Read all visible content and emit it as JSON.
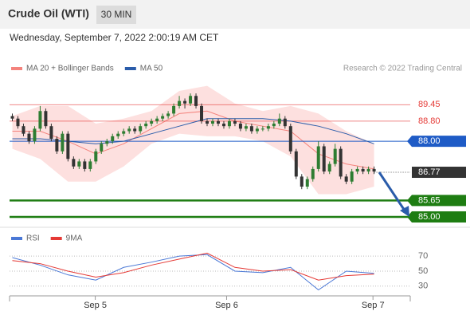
{
  "chart_data": {
    "type": "candlestick",
    "title": "Crude Oil (WTI)",
    "interval": "30 MIN",
    "subtitle": "Wednesday, September 7, 2022 2:00:19 AM CET",
    "credit": "Research © 2022 Trading Central",
    "legend": [
      {
        "name": "MA 20 + Bollinger Bands",
        "color": "#f4837d"
      },
      {
        "name": "MA 50",
        "color": "#2a5caa"
      }
    ],
    "up_color": "#2e7d32",
    "down_color": "#333333",
    "xlim": [
      -0.5,
      71.5
    ],
    "xticks": [
      {
        "value": 14.9,
        "label": "Sep 5"
      },
      {
        "value": 38.5,
        "label": "Sep 6"
      },
      {
        "value": 64.8,
        "label": "Sep 7"
      }
    ],
    "ylim": [
      84.65,
      90.6
    ],
    "x": [
      0,
      1,
      2,
      3,
      4,
      5,
      6,
      7,
      8,
      9,
      10,
      11,
      12,
      13,
      14,
      15,
      16,
      17,
      18,
      19,
      20,
      21,
      22,
      23,
      24,
      25,
      26,
      27,
      28,
      29,
      30,
      31,
      32,
      33,
      34,
      35,
      36,
      37,
      38,
      39,
      40,
      41,
      42,
      43,
      44,
      45,
      46,
      47,
      48,
      49,
      50,
      51,
      52,
      53,
      54,
      55,
      56,
      57,
      58,
      59,
      60,
      61,
      62,
      63,
      64,
      65
    ],
    "candles": [
      [
        89.0,
        89.1,
        88.8,
        88.9
      ],
      [
        88.9,
        89.0,
        88.5,
        88.6
      ],
      [
        88.6,
        88.7,
        88.2,
        88.3
      ],
      [
        88.3,
        88.4,
        87.9,
        88.0
      ],
      [
        88.0,
        88.6,
        87.9,
        88.5
      ],
      [
        88.5,
        89.4,
        88.4,
        89.2
      ],
      [
        89.2,
        89.3,
        88.5,
        88.6
      ],
      [
        88.6,
        88.7,
        88.0,
        88.1
      ],
      [
        88.1,
        88.2,
        87.5,
        87.6
      ],
      [
        87.6,
        88.4,
        87.5,
        88.3
      ],
      [
        88.3,
        88.4,
        87.2,
        87.3
      ],
      [
        87.3,
        87.4,
        86.9,
        87.0
      ],
      [
        87.0,
        87.3,
        86.9,
        87.2
      ],
      [
        87.2,
        87.3,
        86.8,
        86.9
      ],
      [
        86.9,
        87.3,
        86.8,
        87.2
      ],
      [
        87.2,
        87.7,
        87.1,
        87.6
      ],
      [
        87.6,
        88.0,
        87.5,
        87.9
      ],
      [
        87.9,
        88.1,
        87.8,
        88.0
      ],
      [
        88.0,
        88.3,
        87.9,
        88.2
      ],
      [
        88.2,
        88.4,
        88.1,
        88.3
      ],
      [
        88.3,
        88.5,
        88.2,
        88.4
      ],
      [
        88.4,
        88.6,
        88.3,
        88.5
      ],
      [
        88.5,
        88.6,
        88.3,
        88.4
      ],
      [
        88.4,
        88.7,
        88.3,
        88.6
      ],
      [
        88.6,
        88.8,
        88.5,
        88.7
      ],
      [
        88.7,
        88.9,
        88.6,
        88.8
      ],
      [
        88.8,
        89.0,
        88.7,
        88.9
      ],
      [
        88.9,
        89.1,
        88.8,
        89.0
      ],
      [
        89.0,
        89.2,
        88.9,
        89.1
      ],
      [
        89.1,
        89.5,
        89.0,
        89.4
      ],
      [
        89.4,
        89.8,
        89.3,
        89.6
      ],
      [
        89.6,
        89.7,
        89.3,
        89.5
      ],
      [
        89.5,
        89.9,
        89.4,
        89.8
      ],
      [
        89.8,
        89.9,
        89.3,
        89.4
      ],
      [
        89.4,
        89.5,
        88.7,
        88.8
      ],
      [
        88.8,
        88.9,
        88.6,
        88.7
      ],
      [
        88.7,
        88.9,
        88.6,
        88.8
      ],
      [
        88.8,
        88.9,
        88.6,
        88.7
      ],
      [
        88.7,
        88.8,
        88.5,
        88.6
      ],
      [
        88.6,
        88.9,
        88.5,
        88.8
      ],
      [
        88.8,
        88.9,
        88.6,
        88.7
      ],
      [
        88.7,
        88.8,
        88.4,
        88.5
      ],
      [
        88.5,
        88.7,
        88.4,
        88.6
      ],
      [
        88.6,
        88.7,
        88.3,
        88.4
      ],
      [
        88.4,
        88.6,
        88.3,
        88.5
      ],
      [
        88.5,
        88.6,
        88.4,
        88.5
      ],
      [
        88.5,
        88.7,
        88.4,
        88.6
      ],
      [
        88.6,
        88.8,
        88.5,
        88.7
      ],
      [
        88.7,
        89.1,
        88.6,
        88.9
      ],
      [
        88.9,
        89.0,
        88.5,
        88.6
      ],
      [
        88.6,
        88.7,
        87.5,
        87.6
      ],
      [
        87.6,
        87.7,
        86.5,
        86.6
      ],
      [
        86.6,
        86.7,
        86.1,
        86.2
      ],
      [
        86.2,
        86.6,
        86.1,
        86.5
      ],
      [
        86.5,
        87.0,
        86.4,
        86.9
      ],
      [
        86.9,
        88.0,
        86.8,
        87.8
      ],
      [
        87.8,
        87.9,
        86.7,
        86.8
      ],
      [
        86.8,
        87.2,
        86.7,
        87.1
      ],
      [
        87.1,
        87.9,
        87.0,
        87.7
      ],
      [
        87.7,
        87.8,
        86.5,
        86.6
      ],
      [
        86.6,
        86.7,
        86.3,
        86.4
      ],
      [
        86.4,
        86.9,
        86.3,
        86.8
      ],
      [
        86.8,
        87.0,
        86.7,
        86.9
      ],
      [
        86.9,
        87.0,
        86.7,
        86.8
      ],
      [
        86.8,
        87.0,
        86.7,
        86.9
      ],
      [
        86.9,
        87.0,
        86.7,
        86.8
      ]
    ],
    "bollinger": {
      "x": [
        0,
        5,
        10,
        15,
        20,
        25,
        30,
        35,
        40,
        45,
        50,
        55,
        60,
        65
      ],
      "upper": [
        89.0,
        89.4,
        89.4,
        88.7,
        88.9,
        89.2,
        90.0,
        90.2,
        89.5,
        89.2,
        89.4,
        89.1,
        88.4,
        87.9
      ],
      "middle": [
        88.4,
        88.4,
        88.0,
        87.5,
        87.9,
        88.5,
        89.1,
        89.2,
        88.8,
        88.6,
        88.4,
        87.5,
        87.1,
        86.9
      ],
      "lower": [
        87.7,
        87.3,
        86.4,
        86.4,
        87.0,
        87.9,
        88.3,
        88.2,
        88.2,
        88.0,
        87.4,
        85.9,
        85.9,
        86.2
      ]
    },
    "ma50": {
      "x": [
        0,
        5,
        10,
        15,
        20,
        25,
        30,
        35,
        40,
        45,
        50,
        55,
        60,
        65
      ],
      "values": [
        88.1,
        88.1,
        88.0,
        87.9,
        88.0,
        88.3,
        88.6,
        88.9,
        88.9,
        88.9,
        88.8,
        88.6,
        88.3,
        87.9
      ]
    },
    "levels": [
      {
        "value": 89.45,
        "label": "89.45",
        "color": "#e53935",
        "style": "text"
      },
      {
        "value": 88.8,
        "label": "88.80",
        "color": "#e53935",
        "style": "text"
      },
      {
        "value": 88,
        "label": "88.00",
        "color": "#1e5bc6",
        "style": "box"
      },
      {
        "value": 86.77,
        "label": "86.77",
        "color": "#333333",
        "style": "current"
      },
      {
        "value": 85.65,
        "label": "85.65",
        "color": "#1e7d12",
        "style": "box"
      },
      {
        "value": 85,
        "label": "85.00",
        "color": "#1e7d12",
        "style": "box"
      }
    ],
    "rsi": {
      "legend": [
        {
          "name": "RSI",
          "color": "#4a78d6"
        },
        {
          "name": "9MA",
          "color": "#e53935"
        }
      ],
      "ylim": [
        17,
        84
      ],
      "yticks": [
        70,
        50,
        30
      ],
      "x": [
        0,
        5,
        10,
        15,
        20,
        25,
        30,
        35,
        40,
        45,
        50,
        55,
        60,
        65
      ],
      "rsi": [
        68,
        58,
        45,
        38,
        55,
        62,
        70,
        72,
        50,
        48,
        55,
        25,
        50,
        47
      ],
      "ma9": [
        64,
        60,
        50,
        42,
        48,
        58,
        66,
        74,
        55,
        50,
        52,
        38,
        44,
        46
      ]
    }
  }
}
